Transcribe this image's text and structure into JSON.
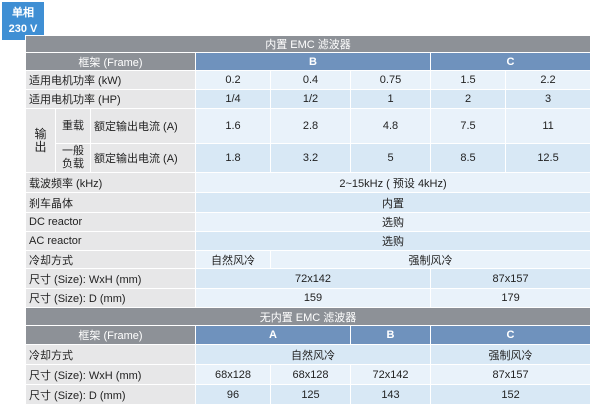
{
  "badge": {
    "line1": "单相",
    "line2": "230 V"
  },
  "section1": {
    "title": "内置 EMC 滤波器",
    "frame_label": "框架 (Frame)",
    "frames": [
      "B",
      "C"
    ],
    "power_kw": {
      "label": "适用电机功率 (kW)",
      "values": [
        "0.2",
        "0.4",
        "0.75",
        "1.5",
        "2.2"
      ]
    },
    "power_hp": {
      "label": "适用电机功率 (HP)",
      "values": [
        "1/4",
        "1/2",
        "1",
        "2",
        "3"
      ]
    },
    "output_group": "输出",
    "heavy": {
      "sub": "重载",
      "label": "额定输出电流 (A)",
      "values": [
        "1.6",
        "2.8",
        "4.8",
        "7.5",
        "11"
      ]
    },
    "normal": {
      "sub": "一般负载",
      "label": "额定输出电流 (A)",
      "values": [
        "1.8",
        "3.2",
        "5",
        "8.5",
        "12.5"
      ]
    },
    "carrier": {
      "label": "载波频率 (kHz)",
      "value": "2~15kHz ( 预设 4kHz)"
    },
    "brake": {
      "label": "刹车晶体",
      "value": "内置"
    },
    "dc": {
      "label": "DC reactor",
      "value": "选购"
    },
    "ac": {
      "label": "AC reactor",
      "value": "选购"
    },
    "cooling": {
      "label": "冷却方式",
      "values": [
        "自然风冷",
        "强制风冷"
      ]
    },
    "size_wh": {
      "label": "尺寸 (Size): WxH (mm)",
      "values": [
        "72x142",
        "87x157"
      ]
    },
    "size_d": {
      "label": "尺寸 (Size): D (mm)",
      "values": [
        "159",
        "179"
      ]
    }
  },
  "section2": {
    "title": "无内置 EMC 滤波器",
    "frame_label": "框架 (Frame)",
    "frames": [
      "A",
      "B",
      "C"
    ],
    "cooling": {
      "label": "冷却方式",
      "values": [
        "自然风冷",
        "强制风冷"
      ]
    },
    "size_wh": {
      "label": "尺寸 (Size): WxH (mm)",
      "values": [
        "68x128",
        "68x128",
        "72x142",
        "87x157"
      ]
    },
    "size_d": {
      "label": "尺寸 (Size): D (mm)",
      "values": [
        "96",
        "125",
        "143",
        "152"
      ]
    }
  }
}
